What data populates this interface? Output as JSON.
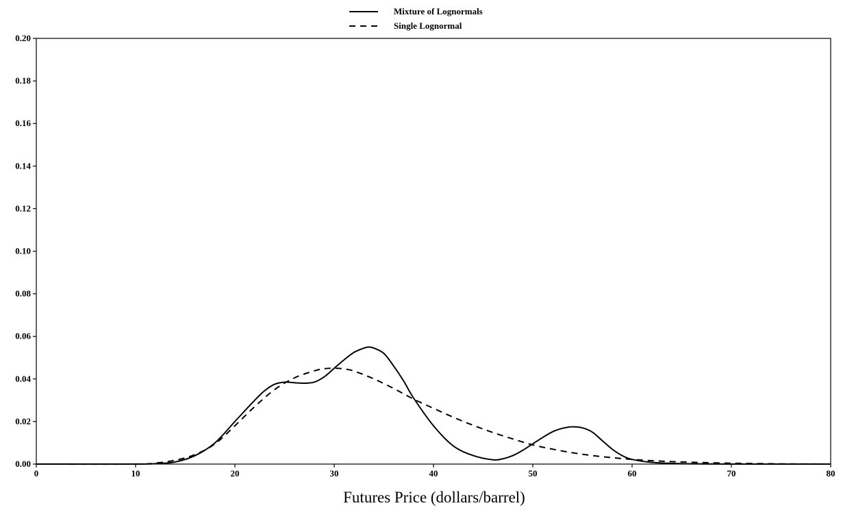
{
  "chart_data": {
    "type": "line",
    "title": "",
    "xlabel": "Futures Price (dollars/barrel)",
    "ylabel": "",
    "xlim": [
      0,
      80
    ],
    "ylim": [
      0,
      0.2
    ],
    "grid": false,
    "legend_position": "top-center",
    "x_ticks": [
      0,
      10,
      20,
      30,
      40,
      50,
      60,
      70,
      80
    ],
    "x_tick_labels": [
      "0",
      "10",
      "20",
      "30",
      "40",
      "50",
      "60",
      "70",
      "80"
    ],
    "y_ticks": [
      0,
      0.02,
      0.04,
      0.06,
      0.08,
      0.1,
      0.12,
      0.14,
      0.16,
      0.18,
      0.2
    ],
    "y_tick_labels": [
      "0.00",
      "0.02",
      "0.04",
      "0.06",
      "0.08",
      "0.10",
      "0.12",
      "0.14",
      "0.16",
      "0.18",
      "0.20"
    ],
    "series": [
      {
        "name": "Mixture of Lognormals",
        "style": "solid",
        "color": "#000000",
        "x": [
          0,
          10,
          12,
          14,
          16,
          18,
          20,
          22,
          23,
          24,
          25,
          26,
          27,
          28,
          29,
          30,
          31,
          32,
          33,
          33.5,
          34,
          35,
          36,
          37,
          38,
          40,
          42,
          44,
          46,
          47,
          48,
          49,
          50,
          51,
          52,
          53,
          54,
          55,
          56,
          57,
          58,
          59,
          60,
          62,
          65,
          70,
          75,
          80
        ],
        "y": [
          0,
          0,
          0.0002,
          0.001,
          0.004,
          0.01,
          0.02,
          0.03,
          0.0345,
          0.0375,
          0.0385,
          0.0382,
          0.038,
          0.0385,
          0.041,
          0.045,
          0.049,
          0.0525,
          0.0545,
          0.055,
          0.0545,
          0.052,
          0.046,
          0.039,
          0.031,
          0.018,
          0.0085,
          0.004,
          0.002,
          0.0025,
          0.004,
          0.0065,
          0.0095,
          0.0125,
          0.0152,
          0.0168,
          0.0175,
          0.017,
          0.015,
          0.011,
          0.007,
          0.004,
          0.0022,
          0.0008,
          0.0002,
          0,
          0,
          0
        ]
      },
      {
        "name": "Single Lognormal",
        "style": "dashed",
        "color": "#000000",
        "x": [
          0,
          10,
          12,
          14,
          16,
          18,
          20,
          22,
          24,
          26,
          28,
          29,
          30,
          31,
          32,
          34,
          36,
          38,
          40,
          42,
          44,
          46,
          48,
          50,
          52,
          54,
          56,
          58,
          60,
          62,
          65,
          70,
          75,
          80
        ],
        "y": [
          0,
          0,
          0.0005,
          0.0018,
          0.0045,
          0.0095,
          0.018,
          0.027,
          0.035,
          0.0405,
          0.0438,
          0.0448,
          0.045,
          0.0447,
          0.0437,
          0.04,
          0.0355,
          0.0305,
          0.0262,
          0.022,
          0.0182,
          0.0148,
          0.0118,
          0.009,
          0.007,
          0.0053,
          0.004,
          0.003,
          0.0022,
          0.0016,
          0.001,
          0.0004,
          0.0001,
          0
        ]
      }
    ]
  }
}
